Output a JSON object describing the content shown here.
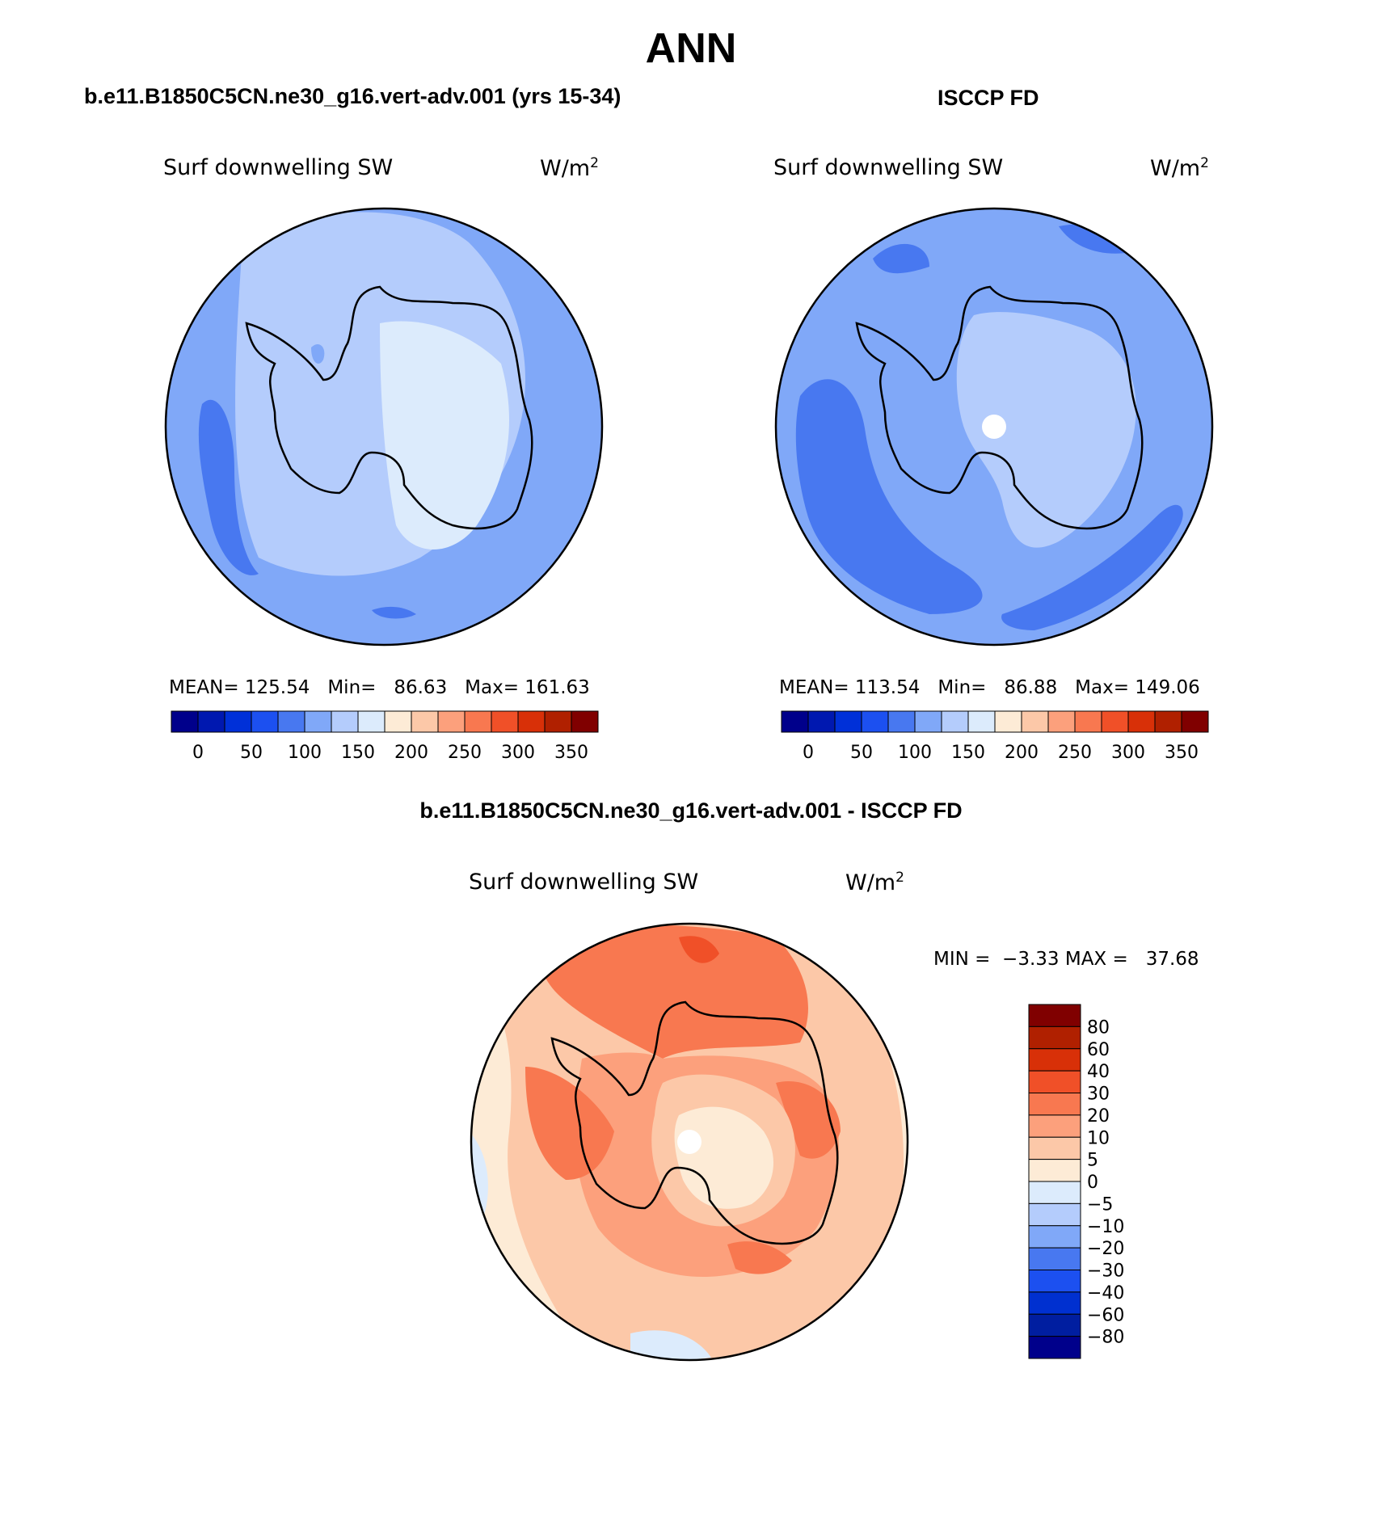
{
  "season": "ANN",
  "chart_data": [
    {
      "type": "map",
      "projection": "south-polar-stereographic",
      "case": "b.e11.B1850C5CN.ne30_g16.vert-adv.001 (yrs 15-34)",
      "variable": "Surf downwelling SW",
      "units": "W/m",
      "units_exp": "2",
      "stats": {
        "mean_label": "MEAN=",
        "mean": "125.54",
        "min_label": "Min=",
        "min": "86.63",
        "max_label": "Max=",
        "max": "161.63"
      },
      "colorbar": {
        "levels": [
          "0",
          "50",
          "100",
          "150",
          "200",
          "250",
          "300",
          "350"
        ]
      }
    },
    {
      "type": "map",
      "projection": "south-polar-stereographic",
      "case": "ISCCP FD",
      "variable": "Surf downwelling SW",
      "units": "W/m",
      "units_exp": "2",
      "stats": {
        "mean_label": "MEAN=",
        "mean": "113.54",
        "min_label": "Min=",
        "min": "86.88",
        "max_label": "Max=",
        "max": "149.06"
      },
      "colorbar": {
        "levels": [
          "0",
          "50",
          "100",
          "150",
          "200",
          "250",
          "300",
          "350"
        ]
      }
    },
    {
      "type": "map",
      "projection": "south-polar-stereographic",
      "case": "b.e11.B1850C5CN.ne30_g16.vert-adv.001 - ISCCP FD",
      "variable": "Surf downwelling SW",
      "units": "W/m",
      "units_exp": "2",
      "stats": {
        "min_label": "MIN =",
        "min": "−3.33",
        "max_label": "MAX =",
        "max": "37.68"
      },
      "colorbar": {
        "levels": [
          "80",
          "60",
          "40",
          "30",
          "20",
          "10",
          "5",
          "0",
          "−5",
          "−10",
          "−20",
          "−30",
          "−40",
          "−60",
          "−80"
        ]
      }
    }
  ],
  "colors": {
    "abs_scale": [
      "#00008b",
      "#0018b0",
      "#0030d8",
      "#1c50f0",
      "#4878f0",
      "#80a8f8",
      "#b4ccfc",
      "#dcebfc",
      "#fdebd6",
      "#fcc8a8",
      "#fca07c",
      "#f87850",
      "#f05028",
      "#d83008",
      "#b02000",
      "#800000"
    ],
    "diff_scale": [
      "#00008b",
      "#001ea0",
      "#0030d0",
      "#1c50f0",
      "#4878f0",
      "#80a8f8",
      "#b4ccfc",
      "#dcebfc",
      "#fdebd6",
      "#fcc8a8",
      "#fca07c",
      "#f87850",
      "#f05028",
      "#d83008",
      "#b02000",
      "#800000"
    ]
  }
}
